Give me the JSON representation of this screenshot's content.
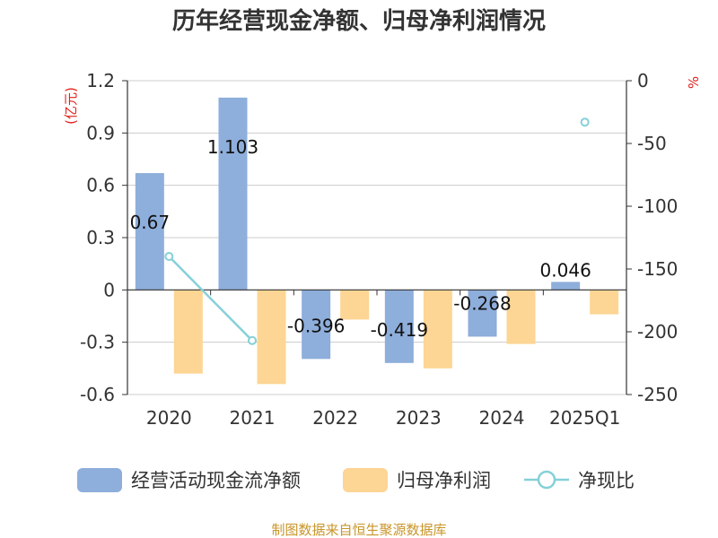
{
  "chart_data": {
    "type": "bar",
    "title": "历年经营现金净额、归母净利润情况",
    "left_axis_unit": "(亿元)",
    "right_axis_unit": "%",
    "categories": [
      "2020",
      "2021",
      "2022",
      "2023",
      "2024",
      "2025Q1"
    ],
    "left_axis": {
      "ylim": [
        -0.6,
        1.2
      ],
      "ticks": [
        "1.2",
        "0.9",
        "0.6",
        "0.3",
        "0",
        "-0.3",
        "-0.6"
      ]
    },
    "right_axis": {
      "ylim": [
        -250,
        0
      ],
      "ticks": [
        "0",
        "-50",
        "-100",
        "-150",
        "-200",
        "-250"
      ]
    },
    "series": [
      {
        "name": "经营活动现金流净额",
        "type": "bar",
        "axis": "left",
        "color": "#8eaedb",
        "values": [
          0.67,
          1.103,
          -0.396,
          -0.419,
          -0.268,
          0.046
        ],
        "labels": [
          "0.67",
          "1.103",
          "-0.396",
          "-0.419",
          "-0.268",
          "0.046"
        ]
      },
      {
        "name": "归母净利润",
        "type": "bar",
        "axis": "left",
        "color": "#fdd594",
        "values": [
          -0.48,
          -0.54,
          -0.17,
          -0.45,
          -0.31,
          -0.14
        ]
      },
      {
        "name": "净现比",
        "type": "line",
        "axis": "right",
        "color": "#85d0d8",
        "values": [
          -140,
          -207,
          null,
          null,
          null,
          -33
        ]
      }
    ],
    "grid": true,
    "legend": "bottom",
    "source": "制图数据来自恒生聚源数据库"
  }
}
